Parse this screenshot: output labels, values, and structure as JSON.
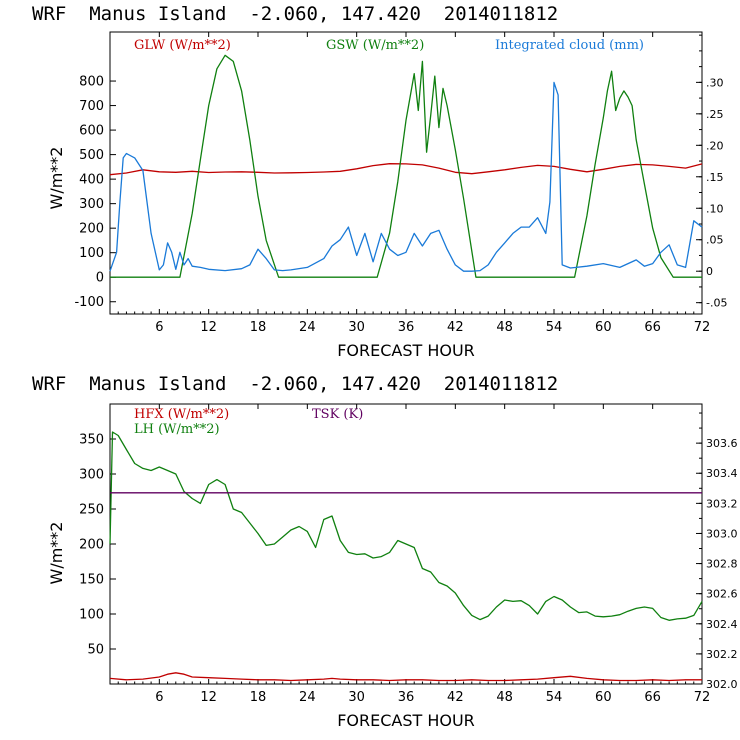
{
  "colors": {
    "red": "#c00000",
    "green": "#108010",
    "blue": "#1a7ad8",
    "purple": "#600060",
    "axis": "#000000"
  },
  "chart_data": [
    {
      "type": "line",
      "title": "WRF  Manus Island  -2.060, 147.420  2014011812",
      "xlabel": "FORECAST HOUR",
      "ylabel": "W/m**2",
      "xlim": [
        0,
        72
      ],
      "ylim": [
        -150,
        1000
      ],
      "xticks": [
        6,
        12,
        18,
        24,
        30,
        36,
        42,
        48,
        54,
        60,
        66,
        72
      ],
      "yticks": [
        -100,
        0,
        100,
        200,
        300,
        400,
        500,
        600,
        700,
        800
      ],
      "y2lim": [
        -0.068,
        0.38
      ],
      "y2ticks": [
        {
          "v": -0.05,
          "label": "-.05"
        },
        {
          "v": 0,
          "label": "0"
        },
        {
          "v": 0.05,
          "label": ".05"
        },
        {
          "v": 0.1,
          "label": ".10"
        },
        {
          "v": 0.15,
          "label": ".15"
        },
        {
          "v": 0.2,
          "label": ".20"
        },
        {
          "v": 0.25,
          "label": ".25"
        },
        {
          "v": 0.3,
          "label": ".30"
        }
      ],
      "legend": [
        {
          "name": "GLW (W/m**2)",
          "color": "#c00000"
        },
        {
          "name": "GSW (W/m**2)",
          "color": "#108010"
        },
        {
          "name": "Integrated cloud (mm)",
          "color": "#1a7ad8"
        }
      ],
      "series": [
        {
          "name": "GLW (W/m**2)",
          "color": "#c00000",
          "axis": "left",
          "x": [
            0,
            2,
            4,
            6,
            8,
            10,
            12,
            14,
            16,
            18,
            20,
            22,
            24,
            26,
            28,
            30,
            32,
            34,
            36,
            38,
            40,
            42,
            44,
            46,
            48,
            50,
            52,
            54,
            56,
            58,
            60,
            62,
            64,
            66,
            68,
            70,
            72
          ],
          "y": [
            418,
            425,
            438,
            430,
            428,
            432,
            427,
            429,
            430,
            428,
            425,
            426,
            427,
            429,
            432,
            442,
            455,
            463,
            462,
            458,
            445,
            428,
            422,
            430,
            438,
            448,
            456,
            452,
            440,
            430,
            440,
            452,
            460,
            458,
            452,
            445,
            462
          ]
        },
        {
          "name": "GSW (W/m**2)",
          "color": "#108010",
          "axis": "left",
          "x": [
            0,
            8.5,
            10,
            11,
            12,
            13,
            14,
            15,
            16,
            17,
            18,
            19,
            20.5,
            32.5,
            34,
            35,
            36,
            37,
            37.5,
            38,
            38.5,
            39,
            39.5,
            40,
            40.5,
            41,
            42,
            43,
            44.5,
            56.5,
            58,
            59,
            60,
            60.5,
            61,
            61.5,
            62,
            62.5,
            63,
            63.5,
            64,
            65,
            66,
            67,
            68.5,
            72
          ],
          "y": [
            0,
            0,
            260,
            480,
            700,
            850,
            905,
            880,
            760,
            560,
            330,
            150,
            0,
            0,
            180,
            390,
            640,
            830,
            680,
            880,
            510,
            660,
            820,
            610,
            770,
            700,
            520,
            320,
            0,
            0,
            250,
            460,
            650,
            760,
            840,
            680,
            730,
            760,
            735,
            700,
            560,
            380,
            200,
            80,
            0,
            0
          ]
        },
        {
          "name": "Integrated cloud (mm)",
          "color": "#1a7ad8",
          "axis": "right",
          "x": [
            0,
            0.8,
            1.2,
            1.6,
            2,
            3,
            4,
            4.5,
            5,
            6,
            6.5,
            7,
            7.5,
            8,
            8.5,
            9,
            9.5,
            10,
            11,
            12,
            14,
            16,
            17,
            18,
            19,
            20,
            21,
            22,
            24,
            26,
            27,
            28,
            29,
            30,
            31,
            32,
            33,
            34,
            35,
            36,
            37,
            38,
            39,
            40,
            41,
            42,
            43,
            44,
            45,
            46,
            47,
            48,
            49,
            50,
            51,
            52,
            53,
            53.5,
            54,
            54.5,
            55,
            56,
            58,
            60,
            62,
            64,
            65,
            66,
            67,
            68,
            69,
            70,
            71,
            72
          ],
          "y": [
            0,
            0.03,
            0.11,
            0.18,
            0.187,
            0.18,
            0.16,
            0.11,
            0.06,
            0.002,
            0.01,
            0.045,
            0.03,
            0.003,
            0.03,
            0.01,
            0.02,
            0.008,
            0.006,
            0.003,
            0.001,
            0.004,
            0.01,
            0.035,
            0.02,
            0.002,
            0.001,
            0.002,
            0.006,
            0.02,
            0.04,
            0.05,
            0.07,
            0.025,
            0.06,
            0.015,
            0.06,
            0.035,
            0.025,
            0.03,
            0.06,
            0.04,
            0.06,
            0.065,
            0.035,
            0.01,
            0.0,
            0.0,
            0.001,
            0.01,
            0.03,
            0.045,
            0.06,
            0.07,
            0.07,
            0.085,
            0.06,
            0.11,
            0.3,
            0.28,
            0.01,
            0.005,
            0.008,
            0.012,
            0.006,
            0.018,
            0.008,
            0.012,
            0.03,
            0.042,
            0.01,
            0.006,
            0.08,
            0.07
          ]
        }
      ]
    },
    {
      "type": "line",
      "title": "WRF  Manus Island  -2.060, 147.420  2014011812",
      "xlabel": "FORECAST HOUR",
      "ylabel": "W/m**2",
      "xlim": [
        0,
        72
      ],
      "ylim": [
        0,
        400
      ],
      "xticks": [
        6,
        12,
        18,
        24,
        30,
        36,
        42,
        48,
        54,
        60,
        66,
        72
      ],
      "yticks": [
        50,
        100,
        150,
        200,
        250,
        300,
        350
      ],
      "y2lim": [
        302.0,
        303.86
      ],
      "y2ticks": [
        {
          "v": 302.0,
          "label": "302.0"
        },
        {
          "v": 302.2,
          "label": "302.2"
        },
        {
          "v": 302.4,
          "label": "302.4"
        },
        {
          "v": 302.6,
          "label": "302.6"
        },
        {
          "v": 302.8,
          "label": "302.8"
        },
        {
          "v": 303.0,
          "label": "303.0"
        },
        {
          "v": 303.2,
          "label": "303.2"
        },
        {
          "v": 303.4,
          "label": "303.4"
        },
        {
          "v": 303.6,
          "label": "303.6"
        }
      ],
      "legend": [
        {
          "name": "HFX (W/m**2)",
          "color": "#c00000"
        },
        {
          "name": "LH  (W/m**2)",
          "color": "#108010"
        },
        {
          "name": "TSK (K)",
          "color": "#600060"
        }
      ],
      "series": [
        {
          "name": "HFX (W/m**2)",
          "color": "#c00000",
          "axis": "left",
          "x": [
            0,
            2,
            4,
            6,
            7,
            8,
            9,
            10,
            12,
            14,
            16,
            18,
            20,
            22,
            24,
            26,
            27,
            28,
            30,
            32,
            34,
            36,
            38,
            40,
            42,
            44,
            46,
            48,
            50,
            52,
            54,
            56,
            58,
            60,
            62,
            64,
            66,
            68,
            70,
            72
          ],
          "y": [
            8,
            6,
            7,
            10,
            14,
            16,
            14,
            10,
            9,
            8,
            7,
            6,
            6,
            5,
            6,
            7,
            8,
            7,
            6,
            6,
            5,
            6,
            6,
            5,
            5,
            6,
            5,
            5,
            6,
            7,
            9,
            11,
            8,
            6,
            5,
            5,
            6,
            5,
            6,
            6
          ]
        },
        {
          "name": "LH  (W/m**2)",
          "color": "#108010",
          "axis": "left",
          "x": [
            0,
            0.3,
            1,
            2,
            3,
            4,
            5,
            6,
            7,
            8,
            9,
            10,
            11,
            12,
            13,
            14,
            15,
            16,
            17,
            18,
            19,
            20,
            21,
            22,
            23,
            24,
            25,
            26,
            27,
            28,
            29,
            30,
            31,
            32,
            33,
            34,
            35,
            36,
            37,
            38,
            39,
            40,
            41,
            42,
            43,
            44,
            45,
            46,
            47,
            48,
            49,
            50,
            51,
            52,
            53,
            54,
            55,
            56,
            57,
            58,
            59,
            60,
            61,
            62,
            63,
            64,
            65,
            66,
            67,
            68,
            69,
            70,
            71,
            72
          ],
          "y": [
            200,
            360,
            355,
            335,
            315,
            308,
            305,
            310,
            305,
            300,
            275,
            265,
            258,
            285,
            292,
            285,
            250,
            245,
            230,
            215,
            198,
            200,
            210,
            220,
            225,
            218,
            195,
            235,
            240,
            205,
            188,
            185,
            186,
            180,
            182,
            188,
            205,
            200,
            195,
            165,
            160,
            145,
            140,
            130,
            112,
            98,
            92,
            97,
            110,
            120,
            118,
            119,
            112,
            100,
            118,
            125,
            120,
            110,
            102,
            103,
            97,
            96,
            97,
            99,
            104,
            108,
            110,
            108,
            95,
            91,
            93,
            94,
            98,
            118
          ]
        },
        {
          "name": "TSK (K)",
          "color": "#600060",
          "axis": "right",
          "x": [
            0,
            72
          ],
          "y": [
            303.27,
            303.27
          ]
        }
      ]
    }
  ]
}
